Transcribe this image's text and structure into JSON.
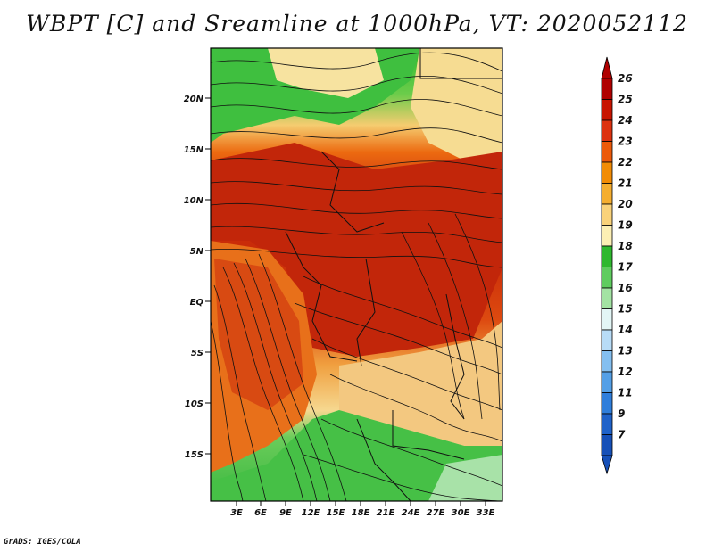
{
  "title": "WBPT [C] and Sreamline at 1000hPa, VT: 2020052112",
  "footer": "GrADS: IGES/COLA",
  "map": {
    "lat_labels": [
      "20N",
      "15N",
      "10N",
      "5N",
      "EQ",
      "5S",
      "10S",
      "15S"
    ],
    "lon_labels": [
      "3E",
      "6E",
      "9E",
      "12E",
      "15E",
      "18E",
      "21E",
      "24E",
      "27E",
      "30E",
      "33E"
    ]
  },
  "colorbar": {
    "labels": [
      "26",
      "25",
      "24",
      "23",
      "22",
      "21",
      "20",
      "19",
      "18",
      "17",
      "16",
      "15",
      "14",
      "13",
      "12",
      "11",
      "9",
      "7"
    ],
    "colors": [
      "#b00000",
      "#c81400",
      "#dd3210",
      "#ec5a0a",
      "#f28c05",
      "#f5ae30",
      "#f9d27a",
      "#fcefb4",
      "#2fb82f",
      "#5fcc5f",
      "#a3e3a3",
      "#e3f6f6",
      "#b8dcf7",
      "#84bff0",
      "#549fe6",
      "#2f7edb",
      "#1f62c9",
      "#1650b8"
    ]
  }
}
